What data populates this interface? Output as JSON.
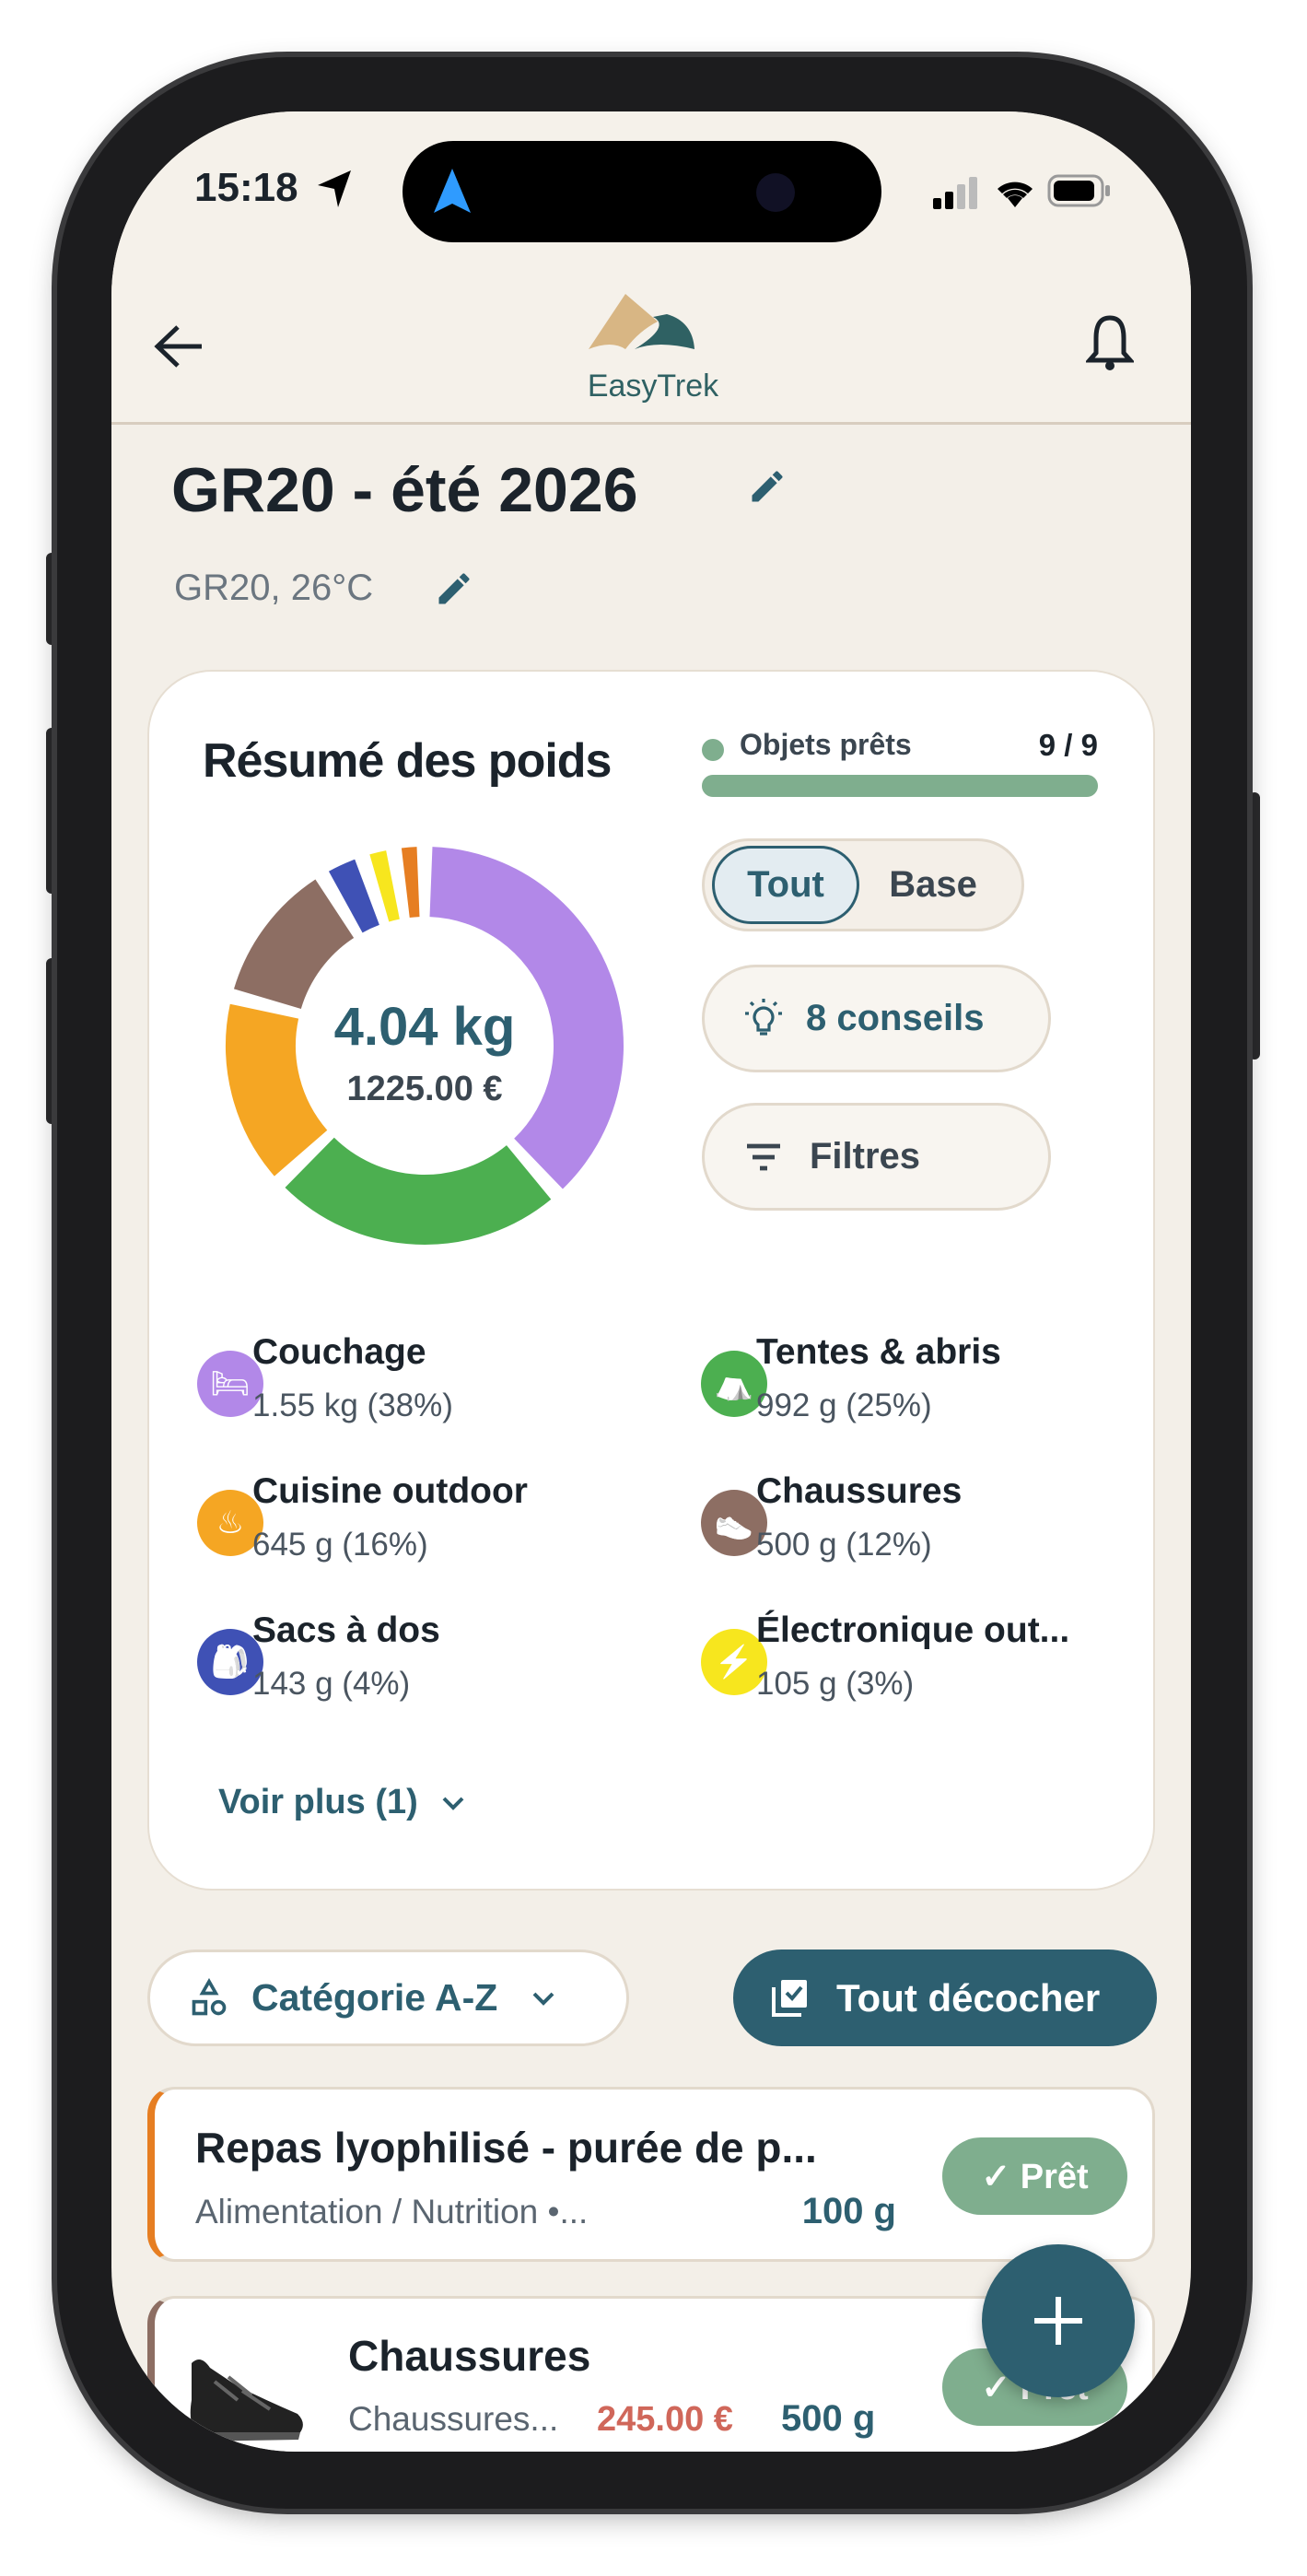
{
  "status_bar": {
    "time": "15:18"
  },
  "header": {
    "logo_text": "EasyTrek"
  },
  "trip": {
    "title": "GR20 - été 2026",
    "subtitle": "GR20, 26°C"
  },
  "summary": {
    "title": "Résumé des poids",
    "ready_label": "Objets prêts",
    "ready_count": "9 / 9",
    "ready_fraction": 1.0,
    "total_weight": "4.04 kg",
    "total_price": "1225.00 €",
    "toggle": {
      "options": [
        "Tout",
        "Base"
      ],
      "selected": "Tout"
    },
    "tips_label": "8 conseils",
    "filters_label": "Filtres",
    "show_more": "Voir plus (1)",
    "categories": [
      {
        "name": "Couchage",
        "value": "1.55 kg (38%)",
        "grams": 1550,
        "color": "#b288e8",
        "icon": "bed-icon",
        "glyph": "🛏"
      },
      {
        "name": "Tentes & abris",
        "value": "992 g (25%)",
        "grams": 992,
        "color": "#4caf50",
        "icon": "tent-icon",
        "glyph": "⛺"
      },
      {
        "name": "Cuisine outdoor",
        "value": "645 g (16%)",
        "grams": 645,
        "color": "#f5a623",
        "icon": "pot-icon",
        "glyph": "♨"
      },
      {
        "name": "Chaussures",
        "value": "500 g (12%)",
        "grams": 500,
        "color": "#8d6e63",
        "icon": "shoe-icon",
        "glyph": "👟"
      },
      {
        "name": "Sacs à dos",
        "value": "143 g (4%)",
        "grams": 143,
        "color": "#3f51b5",
        "icon": "backpack-icon",
        "glyph": "🎒"
      },
      {
        "name": "Électronique out...",
        "value": "105 g (3%)",
        "grams": 105,
        "color": "#f7e61e",
        "icon": "bolt-icon",
        "glyph": "⚡"
      }
    ],
    "hidden_segment": {
      "grams": 100,
      "color": "#e67e22"
    }
  },
  "sort": {
    "label": "Catégorie A-Z"
  },
  "uncheck_all": {
    "label": "Tout décocher"
  },
  "items": [
    {
      "title": "Repas lyophilisé - purée de p...",
      "category": "Alimentation / Nutrition •...",
      "price": "",
      "weight": "100 g",
      "status": "✓ Prêt",
      "color": "#e67e22"
    },
    {
      "title": "Chaussures",
      "category": "Chaussures...",
      "price": "245.00 €",
      "weight": "500 g",
      "status": "✓ Prêt",
      "color": "#8d6e63"
    }
  ],
  "colors": {
    "primary": "#2d5f70",
    "ready": "#7fae8e",
    "price": "#d0675a"
  }
}
